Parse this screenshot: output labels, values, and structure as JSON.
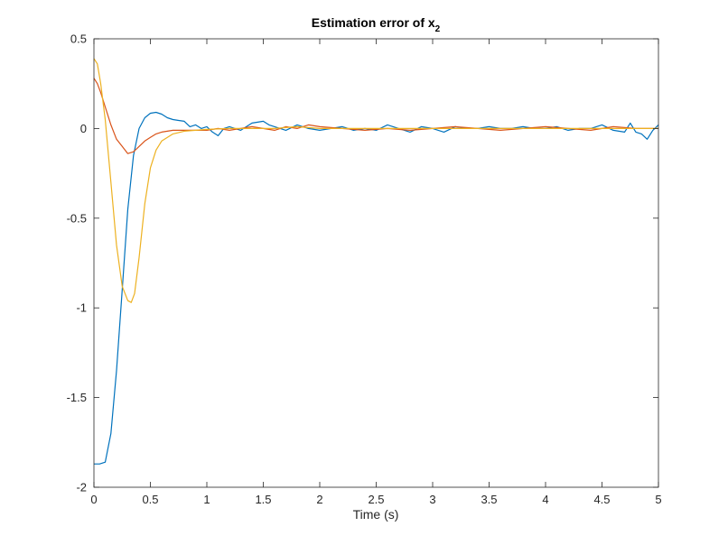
{
  "chart_data": {
    "type": "line",
    "title": "Estimation error of x",
    "title_subscript": "2",
    "xlabel": "Time (s)",
    "ylabel": "",
    "xlim": [
      0,
      5
    ],
    "ylim": [
      -2,
      0.5
    ],
    "grid": false,
    "legend": "none",
    "x_ticks": [
      0,
      0.5,
      1,
      1.5,
      2,
      2.5,
      3,
      3.5,
      4,
      4.5,
      5
    ],
    "x_tick_labels": [
      "0",
      "0.5",
      "1",
      "1.5",
      "2",
      "2.5",
      "3",
      "3.5",
      "4",
      "4.5",
      "5"
    ],
    "y_ticks": [
      -2,
      -1.5,
      -1,
      -0.5,
      0,
      0.5
    ],
    "y_tick_labels": [
      "-2",
      "-1.5",
      "-1",
      "-0.5",
      "0",
      "0.5"
    ],
    "series": [
      {
        "color": "#0072BD",
        "x": [
          0,
          0.05,
          0.1,
          0.15,
          0.2,
          0.25,
          0.3,
          0.35,
          0.4,
          0.45,
          0.5,
          0.55,
          0.6,
          0.65,
          0.7,
          0.75,
          0.8,
          0.85,
          0.9,
          0.95,
          1.0,
          1.05,
          1.1,
          1.15,
          1.2,
          1.3,
          1.4,
          1.5,
          1.55,
          1.6,
          1.7,
          1.8,
          1.9,
          2.0,
          2.1,
          2.2,
          2.3,
          2.4,
          2.5,
          2.6,
          2.7,
          2.8,
          2.9,
          3.0,
          3.1,
          3.2,
          3.3,
          3.4,
          3.5,
          3.6,
          3.7,
          3.8,
          3.9,
          4.0,
          4.1,
          4.2,
          4.3,
          4.4,
          4.5,
          4.6,
          4.7,
          4.75,
          4.8,
          4.85,
          4.9,
          4.95,
          5.0
        ],
        "y": [
          -1.87,
          -1.87,
          -1.86,
          -1.7,
          -1.35,
          -0.9,
          -0.45,
          -0.15,
          0.0,
          0.06,
          0.085,
          0.09,
          0.08,
          0.06,
          0.05,
          0.045,
          0.04,
          0.01,
          0.02,
          0.0,
          0.01,
          -0.02,
          -0.04,
          0.0,
          0.01,
          -0.01,
          0.03,
          0.04,
          0.02,
          0.01,
          -0.01,
          0.02,
          0.0,
          -0.01,
          0.0,
          0.01,
          -0.01,
          0.0,
          -0.01,
          0.02,
          0.0,
          -0.02,
          0.01,
          0.0,
          -0.02,
          0.01,
          0.0,
          0.0,
          0.01,
          0.0,
          0.0,
          0.01,
          0.0,
          0.0,
          0.01,
          -0.01,
          0.0,
          0.0,
          0.02,
          -0.01,
          -0.02,
          0.03,
          -0.02,
          -0.03,
          -0.06,
          -0.01,
          0.02
        ]
      },
      {
        "color": "#D95319",
        "x": [
          0,
          0.03,
          0.06,
          0.1,
          0.15,
          0.2,
          0.25,
          0.3,
          0.35,
          0.4,
          0.45,
          0.5,
          0.55,
          0.6,
          0.7,
          0.8,
          0.9,
          1.0,
          1.1,
          1.2,
          1.3,
          1.4,
          1.5,
          1.6,
          1.7,
          1.8,
          1.9,
          2.0,
          2.2,
          2.4,
          2.6,
          2.8,
          3.0,
          3.2,
          3.4,
          3.6,
          3.8,
          4.0,
          4.2,
          4.4,
          4.6,
          4.8,
          5.0
        ],
        "y": [
          0.28,
          0.25,
          0.2,
          0.12,
          0.02,
          -0.06,
          -0.1,
          -0.14,
          -0.13,
          -0.1,
          -0.07,
          -0.05,
          -0.03,
          -0.02,
          -0.01,
          -0.01,
          -0.01,
          -0.01,
          0.0,
          -0.01,
          0.0,
          0.01,
          0.0,
          -0.01,
          0.01,
          0.0,
          0.02,
          0.01,
          0.0,
          -0.01,
          0.0,
          -0.01,
          0.0,
          0.01,
          0.0,
          -0.01,
          0.0,
          0.01,
          0.0,
          -0.01,
          0.01,
          0.0,
          0.0
        ]
      },
      {
        "color": "#EDB120",
        "x": [
          0,
          0.03,
          0.06,
          0.1,
          0.15,
          0.2,
          0.25,
          0.3,
          0.33,
          0.36,
          0.4,
          0.45,
          0.5,
          0.55,
          0.6,
          0.7,
          0.8,
          0.9,
          1.0,
          1.2,
          1.4,
          1.6,
          1.8,
          2.0,
          2.2,
          2.4,
          2.6,
          2.8,
          3.0,
          3.2,
          3.4,
          3.6,
          3.8,
          4.0,
          4.2,
          4.4,
          4.6,
          4.8,
          5.0
        ],
        "y": [
          0.39,
          0.36,
          0.25,
          0.05,
          -0.3,
          -0.65,
          -0.88,
          -0.96,
          -0.97,
          -0.92,
          -0.72,
          -0.42,
          -0.22,
          -0.12,
          -0.07,
          -0.03,
          -0.015,
          -0.01,
          -0.005,
          0.0,
          0.0,
          0.0,
          0.01,
          0.0,
          0.0,
          0.0,
          0.0,
          0.0,
          0.0,
          0.0,
          0.0,
          0.0,
          0.0,
          0.0,
          0.0,
          0.0,
          0.0,
          0.0,
          0.0
        ]
      }
    ]
  }
}
